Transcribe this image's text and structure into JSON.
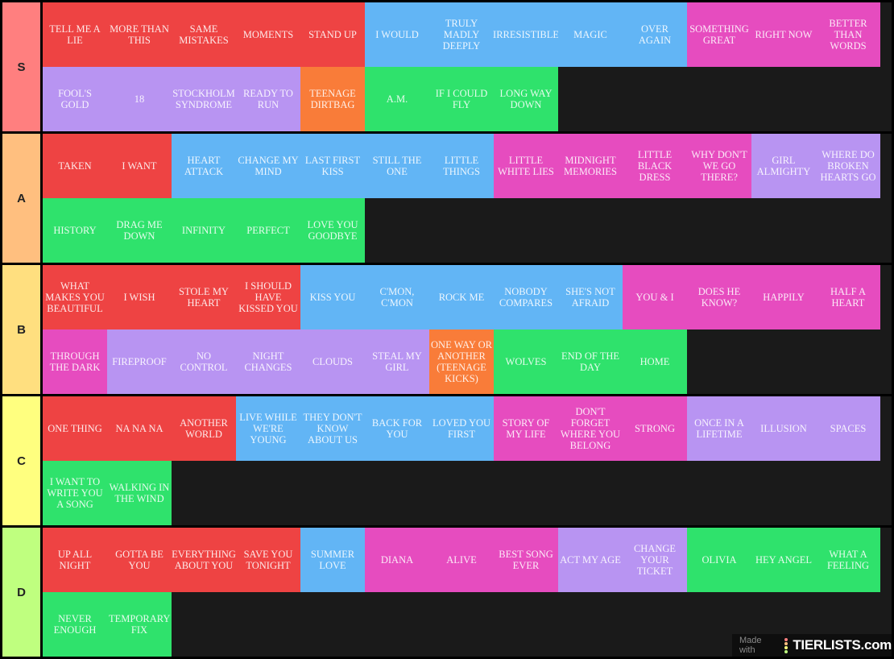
{
  "colors": {
    "r": "#ee4343",
    "b": "#62b5f5",
    "p": "#e64cbf",
    "u": "#b894f2",
    "o": "#f97c39",
    "g": "#2fe26c",
    "bg": "#1a1a1a"
  },
  "tiers": [
    {
      "label": "S",
      "color": "#ff7f7f",
      "items": [
        [
          "Tell me a lie",
          "r"
        ],
        [
          "More than this",
          "r"
        ],
        [
          "Same mistakes",
          "r"
        ],
        [
          "Moments",
          "r"
        ],
        [
          "Stand up",
          "r"
        ],
        [
          "I would",
          "b"
        ],
        [
          "Truly madly deeply",
          "b"
        ],
        [
          "Irresistible",
          "b"
        ],
        [
          "Magic",
          "b"
        ],
        [
          "Over again",
          "b"
        ],
        [
          "Something great",
          "p"
        ],
        [
          "Right now",
          "p"
        ],
        [
          "Better than words",
          "p"
        ],
        [
          "Fool's gold",
          "u"
        ],
        [
          "18",
          "u"
        ],
        [
          "Stockholm syndrome",
          "u"
        ],
        [
          "Ready to run",
          "u"
        ],
        [
          "Teenage dirtbag",
          "o"
        ],
        [
          "A.M.",
          "g"
        ],
        [
          "If I could fly",
          "g"
        ],
        [
          "Long way down",
          "g"
        ]
      ]
    },
    {
      "label": "A",
      "color": "#ffbf7f",
      "items": [
        [
          "Taken",
          "r"
        ],
        [
          "I want",
          "r"
        ],
        [
          "Heart attack",
          "b"
        ],
        [
          "Change my mind",
          "b"
        ],
        [
          "Last first kiss",
          "b"
        ],
        [
          "Still the one",
          "b"
        ],
        [
          "Little things",
          "b"
        ],
        [
          "Little white lies",
          "p"
        ],
        [
          "Midnight memories",
          "p"
        ],
        [
          "Little black dress",
          "p"
        ],
        [
          "Why don't we go there?",
          "p"
        ],
        [
          "Girl almighty",
          "u"
        ],
        [
          "Where do broken hearts go",
          "u"
        ],
        [
          "History",
          "g"
        ],
        [
          "Drag me down",
          "g"
        ],
        [
          "Infinity",
          "g"
        ],
        [
          "Perfect",
          "g"
        ],
        [
          "Love you goodbye",
          "g"
        ]
      ]
    },
    {
      "label": "B",
      "color": "#ffdf7f",
      "items": [
        [
          "What makes you beautiful",
          "r"
        ],
        [
          "I wish",
          "r"
        ],
        [
          "Stole my heart",
          "r"
        ],
        [
          "I should have kissed you",
          "r"
        ],
        [
          "Kiss you",
          "b"
        ],
        [
          "C'mon, c'mon",
          "b"
        ],
        [
          "Rock me",
          "b"
        ],
        [
          "Nobody compares",
          "b"
        ],
        [
          "She's not afraid",
          "b"
        ],
        [
          "You & I",
          "p"
        ],
        [
          "Does he know?",
          "p"
        ],
        [
          "Happily",
          "p"
        ],
        [
          "Half a heart",
          "p"
        ],
        [
          "Through the dark",
          "p"
        ],
        [
          "Fireproof",
          "u"
        ],
        [
          "No control",
          "u"
        ],
        [
          "Night changes",
          "u"
        ],
        [
          "Clouds",
          "u"
        ],
        [
          "Steal my girl",
          "u"
        ],
        [
          "One way or another (teenage kicks)",
          "o"
        ],
        [
          "Wolves",
          "g"
        ],
        [
          "End of the day",
          "g"
        ],
        [
          "Home",
          "g"
        ]
      ]
    },
    {
      "label": "C",
      "color": "#ffff7f",
      "items": [
        [
          "One thing",
          "r"
        ],
        [
          "Na na na",
          "r"
        ],
        [
          "Another world",
          "r"
        ],
        [
          "Live while we're young",
          "b"
        ],
        [
          "They don't know about us",
          "b"
        ],
        [
          "Back for you",
          "b"
        ],
        [
          "Loved you first",
          "b"
        ],
        [
          "Story of my life",
          "p"
        ],
        [
          "Don't forget where you belong",
          "p"
        ],
        [
          "Strong",
          "p"
        ],
        [
          "Once in a lifetime",
          "u"
        ],
        [
          "Illusion",
          "u"
        ],
        [
          "Spaces",
          "u"
        ],
        [
          "I want to write you a song",
          "g"
        ],
        [
          "Walking in the wind",
          "g"
        ]
      ]
    },
    {
      "label": "D",
      "color": "#bfff7f",
      "items": [
        [
          "Up all night",
          "r"
        ],
        [
          "Gotta be you",
          "r"
        ],
        [
          "Everything about you",
          "r"
        ],
        [
          "Save you tonight",
          "r"
        ],
        [
          "Summer love",
          "b"
        ],
        [
          "Diana",
          "p"
        ],
        [
          "Alive",
          "p"
        ],
        [
          "Best song ever",
          "p"
        ],
        [
          "Act my age",
          "u"
        ],
        [
          "Change your ticket",
          "u"
        ],
        [
          "Olivia",
          "g"
        ],
        [
          "Hey angel",
          "g"
        ],
        [
          "What a feeling",
          "g"
        ],
        [
          "Never enough",
          "g"
        ],
        [
          "Temporary fix",
          "g"
        ]
      ]
    }
  ],
  "watermark": {
    "made_with": "Made with",
    "brand": "TIERLISTS.com"
  }
}
